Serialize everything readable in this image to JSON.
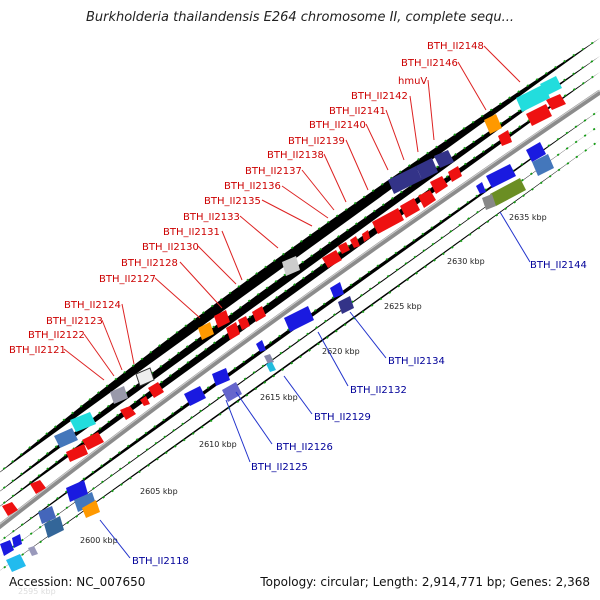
{
  "title": "Burkholderia thailandensis E264 chromosome II, complete sequ...",
  "footer": {
    "accession": "Accession: NC_007650",
    "stats": "Topology: circular; Length: 2,914,771 bp; Genes: 2,368",
    "faded_label": "2595 kbp"
  },
  "colors": {
    "backbone": "#8c8c8c",
    "forward_gene": "#ee1111",
    "reverse_gene": "#1a1ae0",
    "top_label": "#cc0000",
    "bottom_label": "#000099",
    "tick": "#007700"
  },
  "ticks": [
    "2600 kbp",
    "2605 kbp",
    "2610 kbp",
    "2615 kbp",
    "2620 kbp",
    "2625 kbp",
    "2630 kbp",
    "2635 kbp"
  ],
  "top_labels": [
    "BTH_II2121",
    "BTH_II2122",
    "BTH_II2123",
    "BTH_II2124",
    "BTH_II2127",
    "BTH_II2128",
    "BTH_II2130",
    "BTH_II2131",
    "BTH_II2133",
    "BTH_II2135",
    "BTH_II2136",
    "BTH_II2137",
    "BTH_II2138",
    "BTH_II2139",
    "BTH_II2140",
    "BTH_II2141",
    "BTH_II2142",
    "hmuV",
    "BTH_II2146",
    "BTH_II2148"
  ],
  "bottom_labels": [
    "BTH_II2118",
    "BTH_II2125",
    "BTH_II2126",
    "BTH_II2129",
    "BTH_II2132",
    "BTH_II2134",
    "BTH_II2144"
  ]
}
